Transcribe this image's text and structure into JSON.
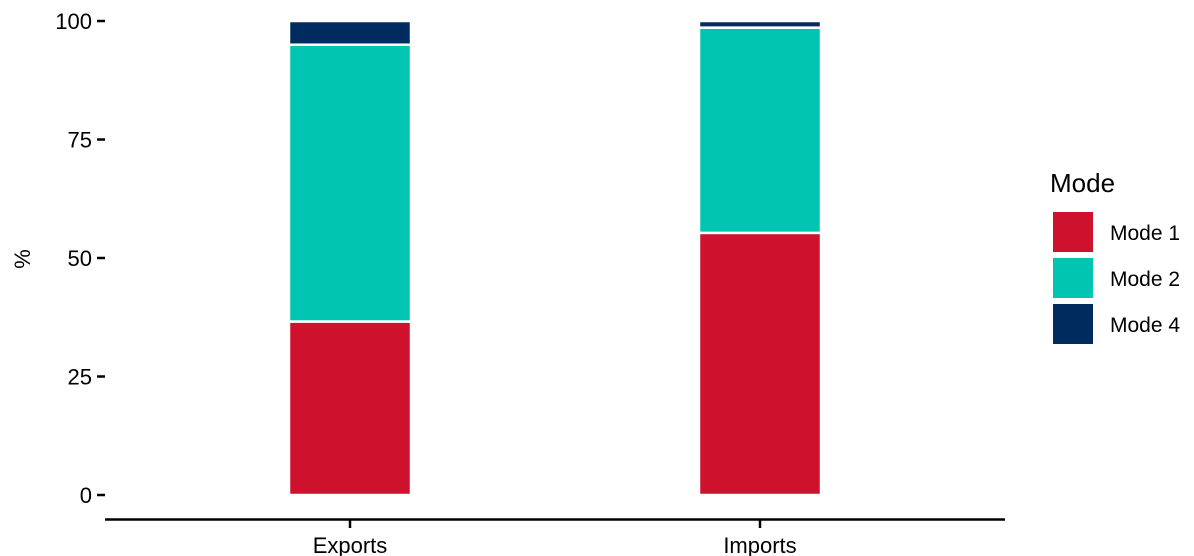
{
  "chart_data": {
    "type": "bar",
    "stacked": true,
    "categories": [
      "Exports",
      "Imports"
    ],
    "series": [
      {
        "name": "Mode 1",
        "values": [
          36.6,
          55.3
        ],
        "color": "#CE112D"
      },
      {
        "name": "Mode 2",
        "values": [
          58.4,
          43.3
        ],
        "color": "#00C5B0"
      },
      {
        "name": "Mode 4",
        "values": [
          5.0,
          1.4
        ],
        "color": "#002B5F"
      }
    ],
    "ylabel": "%",
    "xlabel": "",
    "ylim": [
      0,
      100
    ],
    "yticks": [
      "0",
      "25",
      "50",
      "75",
      "100"
    ],
    "legend": {
      "title": "Mode",
      "position": "right"
    },
    "grid": false
  }
}
